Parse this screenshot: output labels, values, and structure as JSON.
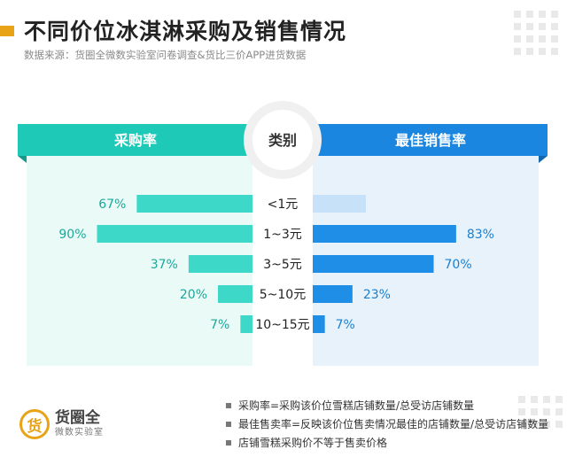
{
  "header": {
    "title": "不同价位冰淇淋采购及销售情况",
    "subtitle": "数据来源：货圈全微数实验室问卷调查&货比三价APP进货数据"
  },
  "chart_data": {
    "type": "bar",
    "center_header": "类别",
    "categories": [
      "<1元",
      "1~3元",
      "3~5元",
      "5~10元",
      "10~15元"
    ],
    "series": [
      {
        "name": "采购率",
        "values": [
          67,
          90,
          37,
          20,
          7
        ],
        "labels": [
          "67%",
          "90%",
          "37%",
          "20%",
          "7%"
        ],
        "color": "#3dd8c8",
        "header_color": "#1ec9b7"
      },
      {
        "name": "最佳销售率",
        "values": [
          null,
          83,
          70,
          23,
          7
        ],
        "labels": [
          "",
          "83%",
          "70%",
          "23%",
          "7%"
        ],
        "color": "#1e8ee6",
        "header_color": "#1a86e0",
        "placeholder_color": "#c6e1f8"
      }
    ],
    "value_unit": "%",
    "xlim": [
      0,
      100
    ]
  },
  "notes": [
    "采购率=采购该价位雪糕店铺数量/总受访店铺数量",
    "最佳售卖率=反映该价位售卖情况最佳的店铺数量/总受访店铺数量",
    "店铺雪糕采购价不等于售卖价格"
  ],
  "logo": {
    "mark": "货",
    "name": "货圈全",
    "sub": "微数实验室"
  },
  "colors": {
    "accent": "#e8a317",
    "teal": "#1ec9b7",
    "blue": "#1a86e0"
  }
}
